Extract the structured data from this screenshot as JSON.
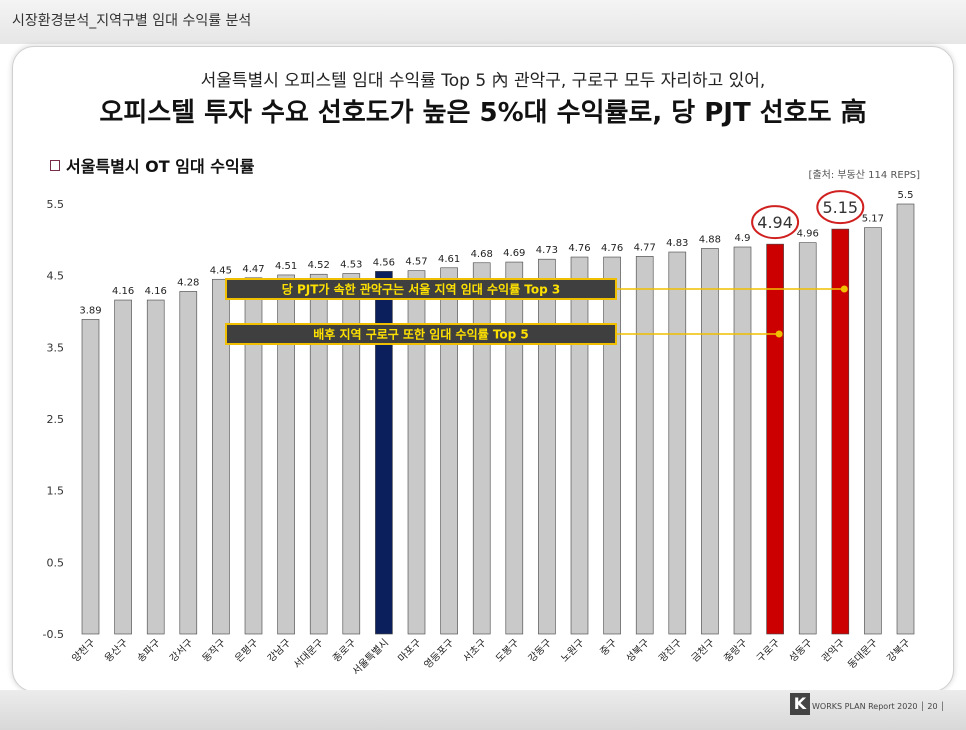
{
  "page": {
    "section_title": "시장환경분석_지역구별 임대 수익률 분석",
    "headline_line1": "서울특별시 오피스텔 임대 수익률 Top 5 內 관악구, 구로구 모두 자리하고 있어,",
    "headline_line2": "오피스텔 투자 수요 선호도가 높은 5%대 수익률로, 당 PJT 선호도 高",
    "chart_subtitle": "서울특별시 OT 임대 수익률",
    "source": "[출처: 부동산 114 REPS]",
    "footer_logo": "K",
    "footer_text": "WORKS PLAN Report 2020 │ 20 │"
  },
  "colors": {
    "default_bar": "#c9c9c9",
    "highlight_bar": "#cc0000",
    "seoul_bar": "#0b1f5c",
    "callout_bg": "#3f3f3f",
    "callout_text": "#ffe100",
    "callout_border": "#f0c000"
  },
  "chart_data": {
    "type": "bar",
    "categories": [
      "양천구",
      "용산구",
      "송파구",
      "강서구",
      "동작구",
      "은평구",
      "강남구",
      "서대문구",
      "종로구",
      "서울특별시",
      "마포구",
      "영등포구",
      "서초구",
      "도봉구",
      "강동구",
      "노원구",
      "중구",
      "성북구",
      "광진구",
      "금천구",
      "중랑구",
      "구로구",
      "성동구",
      "관악구",
      "동대문구",
      "강북구"
    ],
    "values": [
      3.89,
      4.16,
      4.16,
      4.28,
      4.45,
      4.47,
      4.51,
      4.52,
      4.53,
      4.56,
      4.57,
      4.61,
      4.68,
      4.69,
      4.73,
      4.76,
      4.76,
      4.77,
      4.83,
      4.88,
      4.9,
      4.94,
      4.96,
      5.15,
      5.17,
      5.5
    ],
    "value_labels": [
      "3.89",
      "4.16",
      "4.16",
      "4.28",
      "4.45",
      "4.47",
      "4.51",
      "4.52",
      "4.53",
      "4.56",
      "4.57",
      "4.61",
      "4.68",
      "4.69",
      "4.73",
      "4.76",
      "4.76",
      "4.77",
      "4.83",
      "4.88",
      "4.9",
      "4.94",
      "4.96",
      "5.15",
      "5.17",
      "5.5"
    ],
    "yticks": [
      "-0.5",
      "0.5",
      "1.5",
      "2.5",
      "3.5",
      "4.5",
      "5.5"
    ],
    "ylim": [
      -0.5,
      5.5
    ],
    "highlight": [
      "구로구",
      "관악구"
    ],
    "reference": "서울특별시",
    "annotations": [
      {
        "text": "당 PJT가 속한 관악구는 서울 지역 임대 수익률 Top 3",
        "target": "관악구"
      },
      {
        "text": "배후 지역 구로구 또한 임대 수익률 Top 5",
        "target": "구로구"
      }
    ],
    "grid": false
  }
}
